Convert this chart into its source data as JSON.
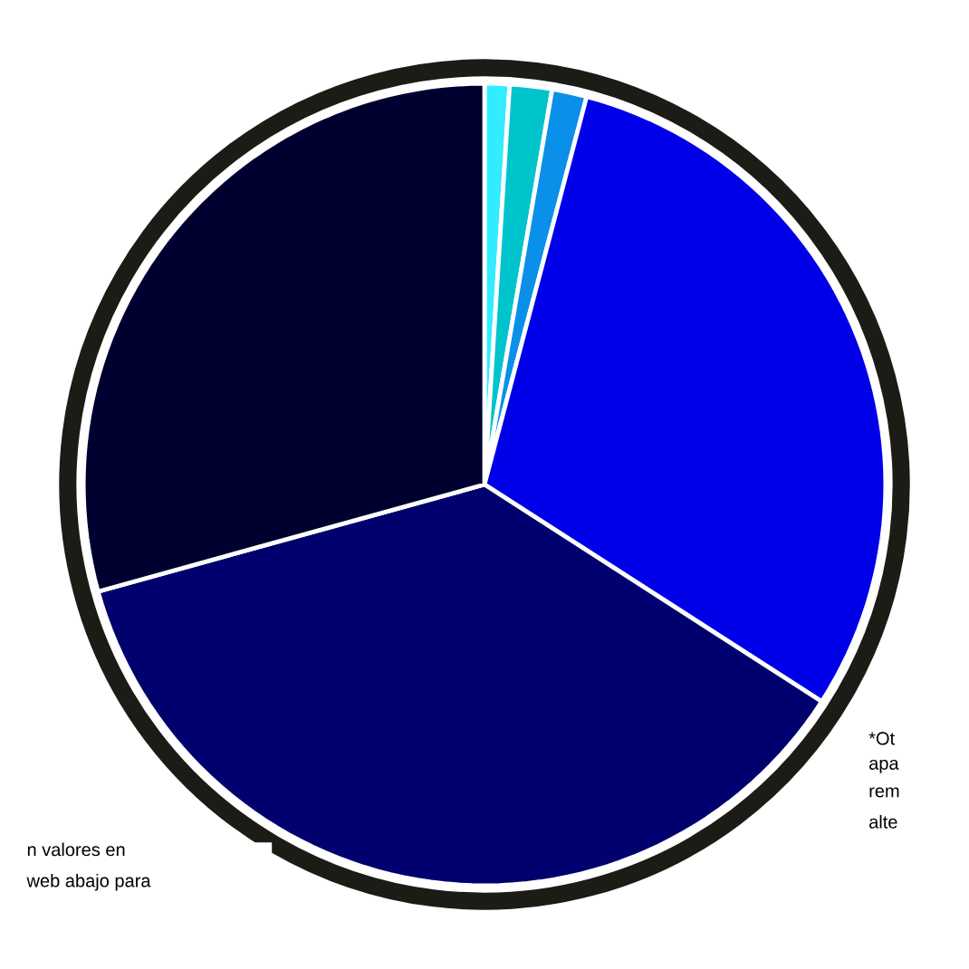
{
  "chart_data": {
    "type": "pie",
    "categories": [
      null,
      null,
      null,
      null,
      null,
      null
    ],
    "values": [
      1.0,
      1.7,
      1.4,
      30.0,
      36.6,
      29.3
    ],
    "colors": [
      "#33ecff",
      "#00c4cc",
      "#0a90e8",
      "#0000e8",
      "#00006e",
      "#000030"
    ],
    "annotations": [
      "*Ot",
      "apa",
      "rem",
      "alte",
      "n valores en",
      "web abajo para"
    ]
  }
}
